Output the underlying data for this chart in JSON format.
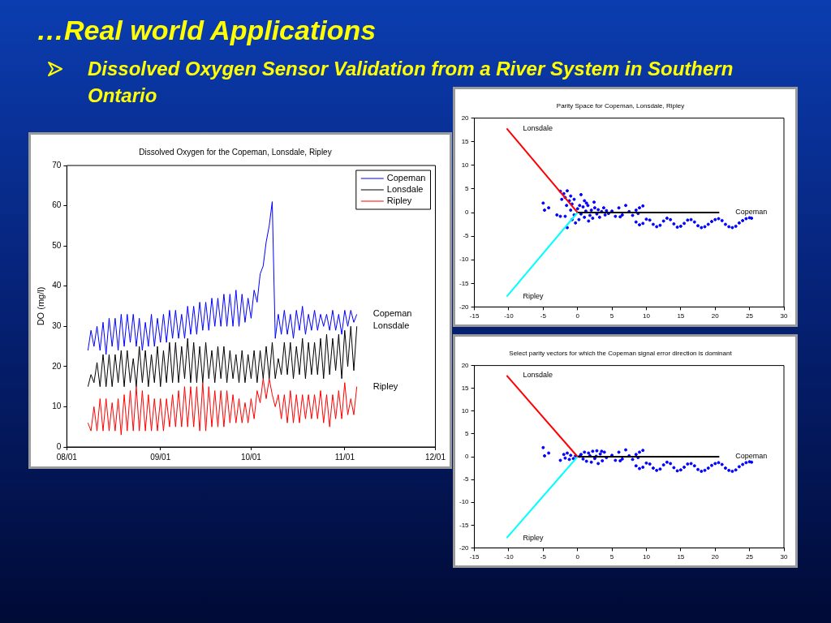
{
  "chart_data": [
    {
      "type": "other",
      "title": "…Real world Applications",
      "subtitle": "Dissolved Oxygen Sensor Validation from a River System in Southern Ontario"
    },
    {
      "type": "line",
      "title": "Dissolved Oxygen for the Copeman, Lonsdale, Ripley",
      "ylabel": "DO (mg/l)",
      "legend": "top right",
      "marker": "none",
      "line_style": "solid",
      "xlim": [
        "--08-01",
        "--12-01"
      ],
      "xticks": [
        {
          "value": "--08-01",
          "label": "08/01"
        },
        {
          "value": "--09-01",
          "label": "09/01"
        },
        {
          "value": "--10-01",
          "label": "10/01"
        },
        {
          "value": "--11-01",
          "label": "11/01"
        },
        {
          "value": "--12-01",
          "label": "12/01"
        }
      ],
      "ylim": [
        0,
        70
      ],
      "yticks": [
        0,
        10,
        20,
        30,
        40,
        50,
        60,
        70
      ],
      "x": [
        "--08-08",
        "--08-09",
        "--08-10",
        "--08-11",
        "--08-12",
        "--08-13",
        "--08-14",
        "--08-15",
        "--08-16",
        "--08-17",
        "--08-18",
        "--08-19",
        "--08-20",
        "--08-21",
        "--08-22",
        "--08-23",
        "--08-24",
        "--08-25",
        "--08-26",
        "--08-27",
        "--08-28",
        "--08-29",
        "--08-30",
        "--08-31",
        "--09-01",
        "--09-02",
        "--09-03",
        "--09-04",
        "--09-05",
        "--09-06",
        "--09-07",
        "--09-08",
        "--09-09",
        "--09-10",
        "--09-11",
        "--09-12",
        "--09-13",
        "--09-14",
        "--09-15",
        "--09-16",
        "--09-17",
        "--09-18",
        "--09-19",
        "--09-20",
        "--09-21",
        "--09-22",
        "--09-23",
        "--09-24",
        "--09-25",
        "--09-26",
        "--09-27",
        "--09-28",
        "--09-29",
        "--09-30",
        "--10-01",
        "--10-02",
        "--10-03",
        "--10-04",
        "--10-05",
        "--10-06",
        "--10-07",
        "--10-08",
        "--10-09",
        "--10-10",
        "--10-11",
        "--10-12",
        "--10-13",
        "--10-14",
        "--10-15",
        "--10-16",
        "--10-17",
        "--10-18",
        "--10-19",
        "--10-20",
        "--10-21",
        "--10-22",
        "--10-23",
        "--10-24",
        "--10-25",
        "--10-26",
        "--10-27",
        "--10-28",
        "--10-29",
        "--10-30",
        "--10-31",
        "--11-01",
        "--11-02",
        "--11-03",
        "--11-04",
        "--11-05"
      ],
      "series": [
        {
          "name": "Copeman",
          "color": "#0000ff",
          "values": [
            24,
            29,
            25,
            30,
            24,
            31,
            23,
            32,
            25,
            32,
            24,
            33,
            25,
            33,
            26,
            33,
            25,
            32,
            24,
            31,
            25,
            33,
            25,
            32,
            26,
            33,
            26,
            34,
            27,
            34,
            27,
            33,
            27,
            35,
            28,
            35,
            28,
            36,
            29,
            36,
            29,
            37,
            30,
            37,
            30,
            38,
            30,
            38,
            30,
            39,
            30,
            38,
            31,
            37,
            32,
            39,
            36,
            43,
            45,
            51,
            55,
            61,
            27,
            33,
            28,
            34,
            28,
            33,
            27,
            34,
            29,
            35,
            28,
            33,
            29,
            34,
            29,
            33,
            30,
            33,
            29,
            34,
            29,
            33,
            28,
            34,
            30,
            34,
            31,
            33
          ]
        },
        {
          "name": "Lonsdale",
          "color": "#000000",
          "values": [
            15,
            18,
            16,
            21,
            15,
            23,
            15,
            23,
            15,
            23,
            16,
            24,
            15,
            24,
            16,
            22,
            15,
            25,
            16,
            24,
            15,
            23,
            16,
            25,
            15,
            24,
            16,
            26,
            16,
            26,
            16,
            25,
            17,
            27,
            16,
            26,
            16,
            25,
            16,
            26,
            17,
            24,
            16,
            25,
            17,
            25,
            16,
            24,
            17,
            23,
            16,
            24,
            16,
            23,
            17,
            24,
            16,
            24,
            17,
            25,
            17,
            26,
            17,
            22,
            18,
            26,
            18,
            26,
            17,
            25,
            18,
            27,
            17,
            26,
            18,
            26,
            18,
            27,
            17,
            28,
            18,
            27,
            19,
            28,
            17,
            29,
            20,
            30,
            19,
            30
          ]
        },
        {
          "name": "Ripley",
          "color": "#ff0000",
          "values": [
            6,
            4,
            10,
            4,
            12,
            4,
            12,
            4,
            11,
            4,
            12,
            3,
            13,
            4,
            14,
            4,
            15,
            4,
            14,
            4,
            13,
            4,
            12,
            4,
            12,
            4,
            12,
            5,
            13,
            5,
            14,
            5,
            15,
            5,
            15,
            5,
            15,
            4,
            16,
            4,
            15,
            5,
            14,
            5,
            14,
            5,
            14,
            6,
            13,
            6,
            12,
            6,
            11,
            6,
            12,
            7,
            14,
            11,
            17,
            12,
            17,
            13,
            10,
            13,
            7,
            13,
            6,
            14,
            6,
            13,
            6,
            13,
            7,
            13,
            7,
            13,
            7,
            14,
            6,
            13,
            5,
            13,
            7,
            14,
            7,
            16,
            8,
            12,
            8,
            15
          ]
        }
      ]
    },
    {
      "type": "scatter",
      "title": "Parity Space for Copeman, Lonsdale, Ripley",
      "xlim": [
        -15,
        30
      ],
      "xticks": [
        -15,
        -10,
        -5,
        0,
        5,
        10,
        15,
        20,
        25,
        30
      ],
      "ylim": [
        -20,
        20
      ],
      "yticks": [
        -20,
        -15,
        -10,
        -5,
        0,
        5,
        10,
        15,
        20
      ],
      "series": [
        {
          "color": "#0000ff",
          "marker": "circle",
          "x": [
            -2.5,
            -2,
            -1.8,
            -1.5,
            -1.2,
            -1,
            -0.8,
            -2.3,
            -1.6,
            -0.5,
            0.5,
            1,
            0.3,
            -5,
            -4.8,
            -4.2,
            -3,
            -1.5,
            -2.5,
            -1.8,
            -1,
            -0.5,
            0,
            0.5,
            0.8,
            1,
            1.2,
            1.5,
            1.8,
            2,
            2.2,
            2.5,
            2.8,
            3,
            3.2,
            3.5,
            3.8,
            4,
            4.2,
            1.3,
            2.4,
            0.2,
            -0.3,
            -0.8,
            1.6,
            4.5,
            5,
            5.5,
            6,
            6.5,
            7,
            7.5,
            8,
            8.5,
            9,
            9.5,
            6.2,
            8.8,
            8.5,
            9,
            9.5,
            10,
            10.5,
            11,
            11.5,
            12,
            12.5,
            13,
            13.5,
            14,
            14.5,
            15,
            15.5,
            16,
            16.5,
            17,
            17.5,
            18,
            18.5,
            19,
            19.5,
            20,
            20.5,
            21,
            21.5,
            22,
            22.5,
            23,
            23.5,
            24,
            24.5,
            25,
            25.3
          ],
          "values": [
            4.5,
            4,
            3.2,
            4.6,
            2.5,
            3.5,
            1.8,
            2.8,
            1.5,
            2.8,
            3.8,
            2.5,
            1.5,
            2,
            0.5,
            1,
            -0.5,
            -3.2,
            -0.8,
            -0.8,
            0.5,
            -0.5,
            0.8,
            -0.3,
            1.2,
            -1,
            0.3,
            1.5,
            -0.6,
            0.5,
            -1.2,
            1,
            -0.3,
            0.6,
            -1,
            0.2,
            1,
            -0.5,
            0.4,
            2,
            2.2,
            -1.5,
            -2.2,
            -1.5,
            -1.8,
            -0.2,
            0.3,
            -0.8,
            1,
            -0.5,
            1.5,
            0.2,
            -0.6,
            0.5,
            1,
            1.4,
            -0.9,
            -0.2,
            -2,
            -2.6,
            -2.3,
            -1.4,
            -1.6,
            -2.5,
            -3,
            -2.7,
            -1.8,
            -1.2,
            -1.5,
            -2.4,
            -3.1,
            -2.9,
            -2.3,
            -1.6,
            -1.5,
            -2,
            -2.8,
            -3.2,
            -3,
            -2.5,
            -1.9,
            -1.5,
            -1.3,
            -1.7,
            -2.5,
            -3,
            -3.2,
            -2.9,
            -2.2,
            -1.7,
            -1.3,
            -1.1,
            -1.2
          ]
        },
        {
          "type": "line",
          "name": "Lonsdale",
          "color": "#ff0000",
          "x": [
            0,
            -10.3
          ],
          "values": [
            0,
            17.8
          ]
        },
        {
          "type": "line",
          "name": "Ripley",
          "color": "#00ffff",
          "x": [
            0,
            -10.3
          ],
          "values": [
            0,
            -17.8
          ]
        },
        {
          "type": "line",
          "name": "Copeman",
          "color": "#000000",
          "x": [
            0,
            20.6
          ],
          "values": [
            0,
            0
          ]
        }
      ]
    },
    {
      "type": "scatter",
      "title": "Select parity vectors for which the Copeman signal error direction is dominant",
      "xlim": [
        -15,
        30
      ],
      "xticks": [
        -15,
        -10,
        -5,
        0,
        5,
        10,
        15,
        20,
        25,
        30
      ],
      "ylim": [
        -20,
        20
      ],
      "yticks": [
        -20,
        -15,
        -10,
        -5,
        0,
        5,
        10,
        15,
        20
      ],
      "series": [
        {
          "color": "#0000ff",
          "marker": "circle",
          "x": [
            -2.5,
            -2,
            -1.8,
            -1.5,
            -1.2,
            -1,
            -0.6,
            -0.3,
            0.5,
            0.8,
            1,
            1.3,
            1.6,
            2,
            2.2,
            2.5,
            2.8,
            3,
            3.3,
            3.6,
            3.9,
            4.2,
            1.8,
            2.7,
            3.5,
            0.3,
            -5,
            -4.8,
            -4.2,
            5,
            5.5,
            6,
            6.5,
            7,
            7.5,
            8,
            8.5,
            9,
            9.5,
            6.2,
            8.8,
            8.5,
            9,
            9.5,
            10,
            10.5,
            11,
            11.5,
            12,
            12.5,
            13,
            13.5,
            14,
            14.5,
            15,
            15.5,
            16,
            16.5,
            17,
            17.5,
            18,
            18.5,
            19,
            19.5,
            20,
            20.5,
            21,
            21.5,
            22,
            22.5,
            23,
            23.5,
            24,
            24.5,
            25,
            25.3
          ],
          "values": [
            -0.8,
            0.5,
            -0.3,
            0.8,
            -0.6,
            0.3,
            -0.4,
            0.2,
            0.5,
            -0.5,
            1,
            -1,
            0.8,
            -1.2,
            1.2,
            -0.4,
            1.3,
            -1.5,
            0.6,
            -0.9,
            1,
            -0.2,
            0.2,
            0.1,
            1.2,
            0.1,
            2,
            0.2,
            0.8,
            0.3,
            -0.8,
            1,
            -0.5,
            1.5,
            0.2,
            -0.6,
            0.5,
            1,
            1.4,
            -0.9,
            -0.2,
            -2,
            -2.6,
            -2.3,
            -1.4,
            -1.6,
            -2.5,
            -3,
            -2.7,
            -1.8,
            -1.2,
            -1.5,
            -2.4,
            -3.1,
            -2.9,
            -2.3,
            -1.6,
            -1.5,
            -2,
            -2.8,
            -3.2,
            -3,
            -2.5,
            -1.9,
            -1.5,
            -1.3,
            -1.7,
            -2.5,
            -3,
            -3.2,
            -2.9,
            -2.2,
            -1.7,
            -1.3,
            -1.1,
            -1.2
          ]
        },
        {
          "type": "line",
          "name": "Lonsdale",
          "color": "#ff0000",
          "x": [
            0,
            -10.3
          ],
          "values": [
            0,
            17.8
          ]
        },
        {
          "type": "line",
          "name": "Ripley",
          "color": "#00ffff",
          "x": [
            0,
            -10.3
          ],
          "values": [
            0,
            -17.8
          ]
        },
        {
          "type": "line",
          "name": "Copeman",
          "color": "#000000",
          "x": [
            0,
            20.6
          ],
          "values": [
            0,
            0
          ]
        }
      ]
    }
  ]
}
